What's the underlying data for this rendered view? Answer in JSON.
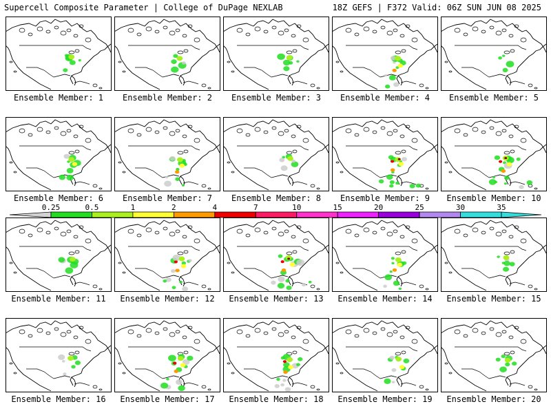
{
  "header": {
    "title_left": "Supercell Composite Parameter | College of DuPage NEXLAB",
    "title_right": "18Z GEFS | F372 Valid: 06Z SUN JUN 08 2025"
  },
  "colorbar": {
    "ticks": [
      "0.25",
      "0.5",
      "1",
      "2",
      "4",
      "7",
      "10",
      "15",
      "20",
      "25",
      "30",
      "35"
    ],
    "colors": [
      "#d3d3d3",
      "#22dd22",
      "#aaf01e",
      "#ffff33",
      "#ff9900",
      "#ee0000",
      "#ff1a66",
      "#ff33cc",
      "#ee22ff",
      "#9900dd",
      "#b388ee",
      "#33dddd"
    ]
  },
  "members": [
    {
      "label": "Ensemble Member: 1",
      "level": 1
    },
    {
      "label": "Ensemble Member: 2",
      "level": 1
    },
    {
      "label": "Ensemble Member: 3",
      "level": 1
    },
    {
      "label": "Ensemble Member: 4",
      "level": 3
    },
    {
      "label": "Ensemble Member: 5",
      "level": 0
    },
    {
      "label": "Ensemble Member: 6",
      "level": 2
    },
    {
      "label": "Ensemble Member: 7",
      "level": 3
    },
    {
      "label": "Ensemble Member: 8",
      "level": 1
    },
    {
      "label": "Ensemble Member: 9",
      "level": 5
    },
    {
      "label": "Ensemble Member: 10",
      "level": 5
    },
    {
      "label": "Ensemble Member: 11",
      "level": 1
    },
    {
      "label": "Ensemble Member: 12",
      "level": 4
    },
    {
      "label": "Ensemble Member: 13",
      "level": 6
    },
    {
      "label": "Ensemble Member: 14",
      "level": 3
    },
    {
      "label": "Ensemble Member: 15",
      "level": 1
    },
    {
      "label": "Ensemble Member: 16",
      "level": 1
    },
    {
      "label": "Ensemble Member: 17",
      "level": 4
    },
    {
      "label": "Ensemble Member: 18",
      "level": 4
    },
    {
      "label": "Ensemble Member: 19",
      "level": 2
    },
    {
      "label": "Ensemble Member: 20",
      "level": 1
    }
  ]
}
